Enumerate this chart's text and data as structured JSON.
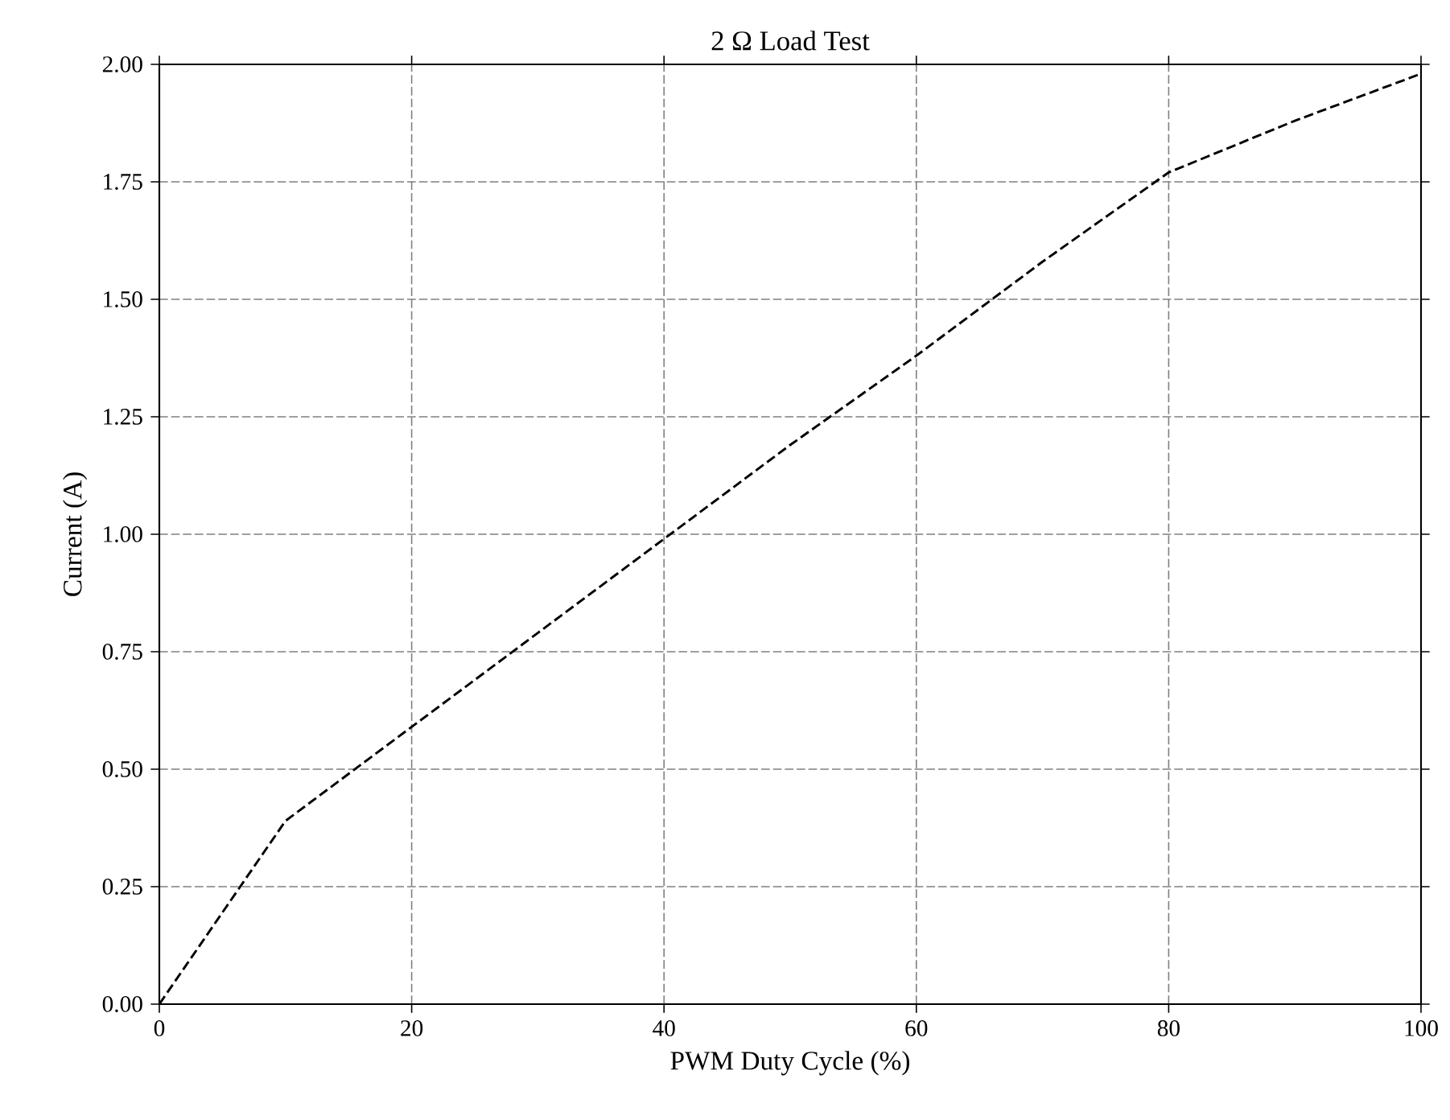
{
  "chart_data": {
    "type": "line",
    "title": "2 Ω Load Test",
    "xlabel": "PWM Duty Cycle (%)",
    "ylabel": "Current (A)",
    "x": [
      0,
      10,
      20,
      30,
      40,
      50,
      60,
      70,
      80,
      90,
      100
    ],
    "series": [
      {
        "color": "#000000",
        "values": [
          0,
          0.39,
          0.59,
          0.79,
          0.99,
          1.19,
          1.38,
          1.58,
          1.77,
          1.88,
          1.98
        ]
      }
    ],
    "xlim": [
      0,
      100
    ],
    "ylim": [
      0,
      2
    ],
    "xticks": [
      0,
      20,
      40,
      60,
      80,
      100
    ],
    "yticks": [
      {
        "value": 0,
        "label": "0.00"
      },
      {
        "value": 0.25,
        "label": "0.25"
      },
      {
        "value": 0.5,
        "label": "0.50"
      },
      {
        "value": 0.75,
        "label": "0.75"
      },
      {
        "value": 1,
        "label": "1.00"
      },
      {
        "value": 1.25,
        "label": "1.25"
      },
      {
        "value": 1.5,
        "label": "1.50"
      },
      {
        "value": 1.75,
        "label": "1.75"
      },
      {
        "value": 2,
        "label": "2.00"
      }
    ],
    "grid": true,
    "line_style": "dashed",
    "marker": "none"
  }
}
